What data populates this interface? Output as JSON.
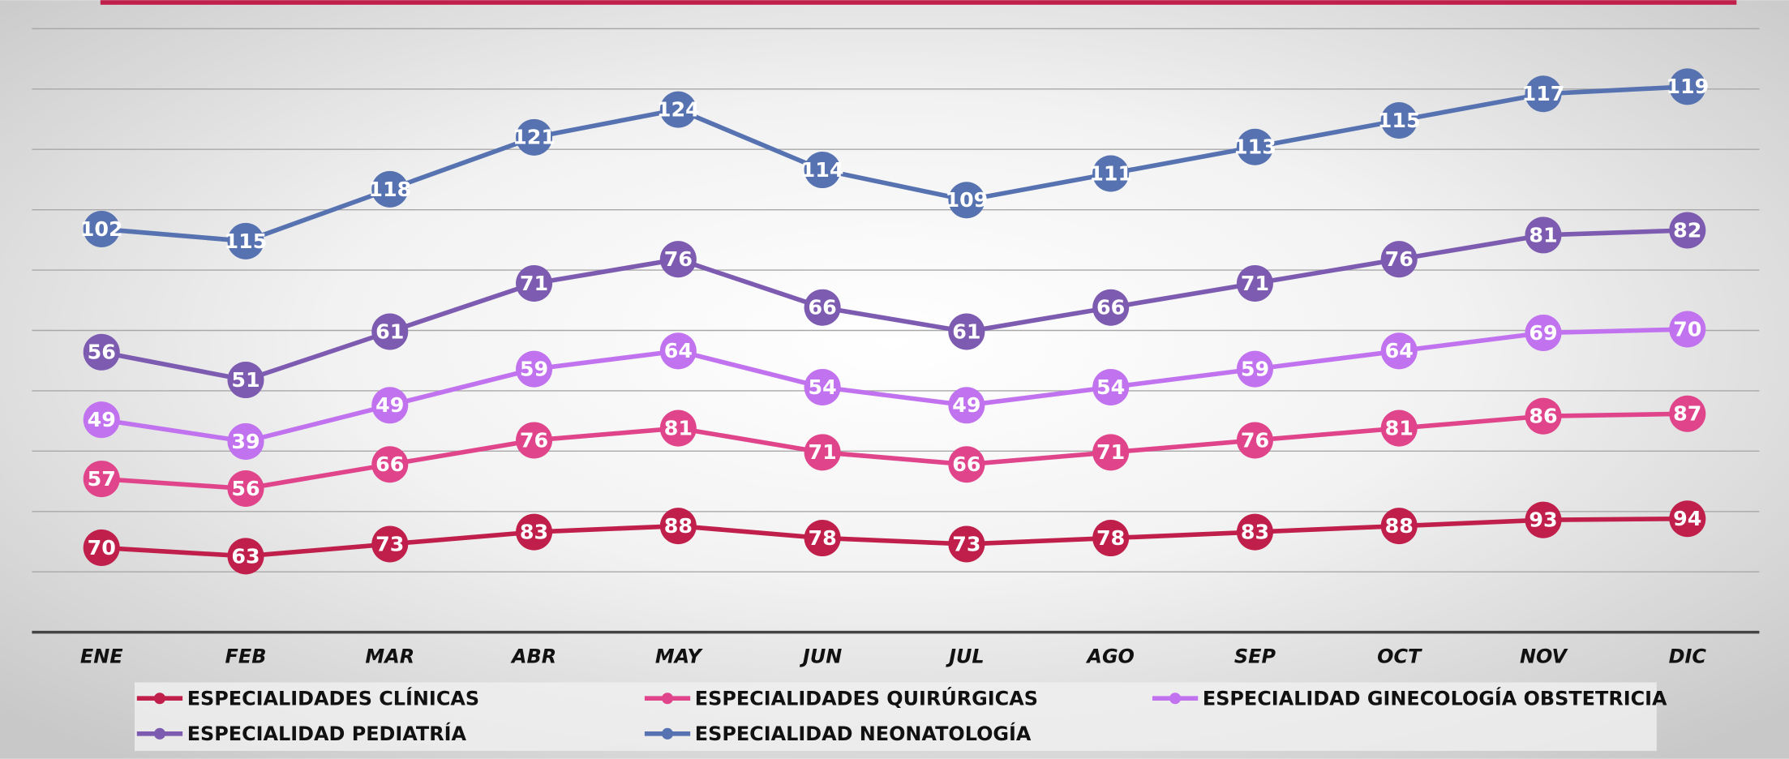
{
  "chart_data": {
    "type": "line",
    "stacked": true,
    "categories": [
      "ENE",
      "FEB",
      "MAR",
      "ABR",
      "MAY",
      "JUN",
      "JUL",
      "AGO",
      "SEP",
      "OCT",
      "NOV",
      "DIC"
    ],
    "series": [
      {
        "name": "ESPECIALIDADES CLÍNICAS",
        "color": "#c01f4b",
        "values": [
          70,
          63,
          73,
          83,
          88,
          78,
          73,
          78,
          83,
          88,
          93,
          94
        ]
      },
      {
        "name": "ESPECIALIDADES QUIRÚRGICAS",
        "color": "#e0458b",
        "values": [
          57,
          56,
          66,
          76,
          81,
          71,
          66,
          71,
          76,
          81,
          86,
          87
        ]
      },
      {
        "name": "ESPECIALIDAD GINECOLOGÍA OBSTETRICIA",
        "color": "#c172ef",
        "values": [
          49,
          39,
          49,
          59,
          64,
          54,
          49,
          54,
          59,
          64,
          69,
          70
        ]
      },
      {
        "name": "ESPECIALIDAD PEDIATRÍA",
        "color": "#7c5bb0",
        "values": [
          56,
          51,
          61,
          71,
          76,
          66,
          61,
          66,
          71,
          76,
          81,
          82
        ]
      },
      {
        "name": "ESPECIALIDAD NEONATOLOGÍA",
        "color": "#5672b0",
        "values": [
          102,
          115,
          118,
          121,
          124,
          114,
          109,
          111,
          113,
          115,
          117,
          119
        ]
      }
    ],
    "ylim": [
      0,
      500
    ],
    "yticks": [
      0,
      50,
      100,
      150,
      200,
      250,
      300,
      350,
      400,
      450,
      500
    ],
    "grid": true
  }
}
